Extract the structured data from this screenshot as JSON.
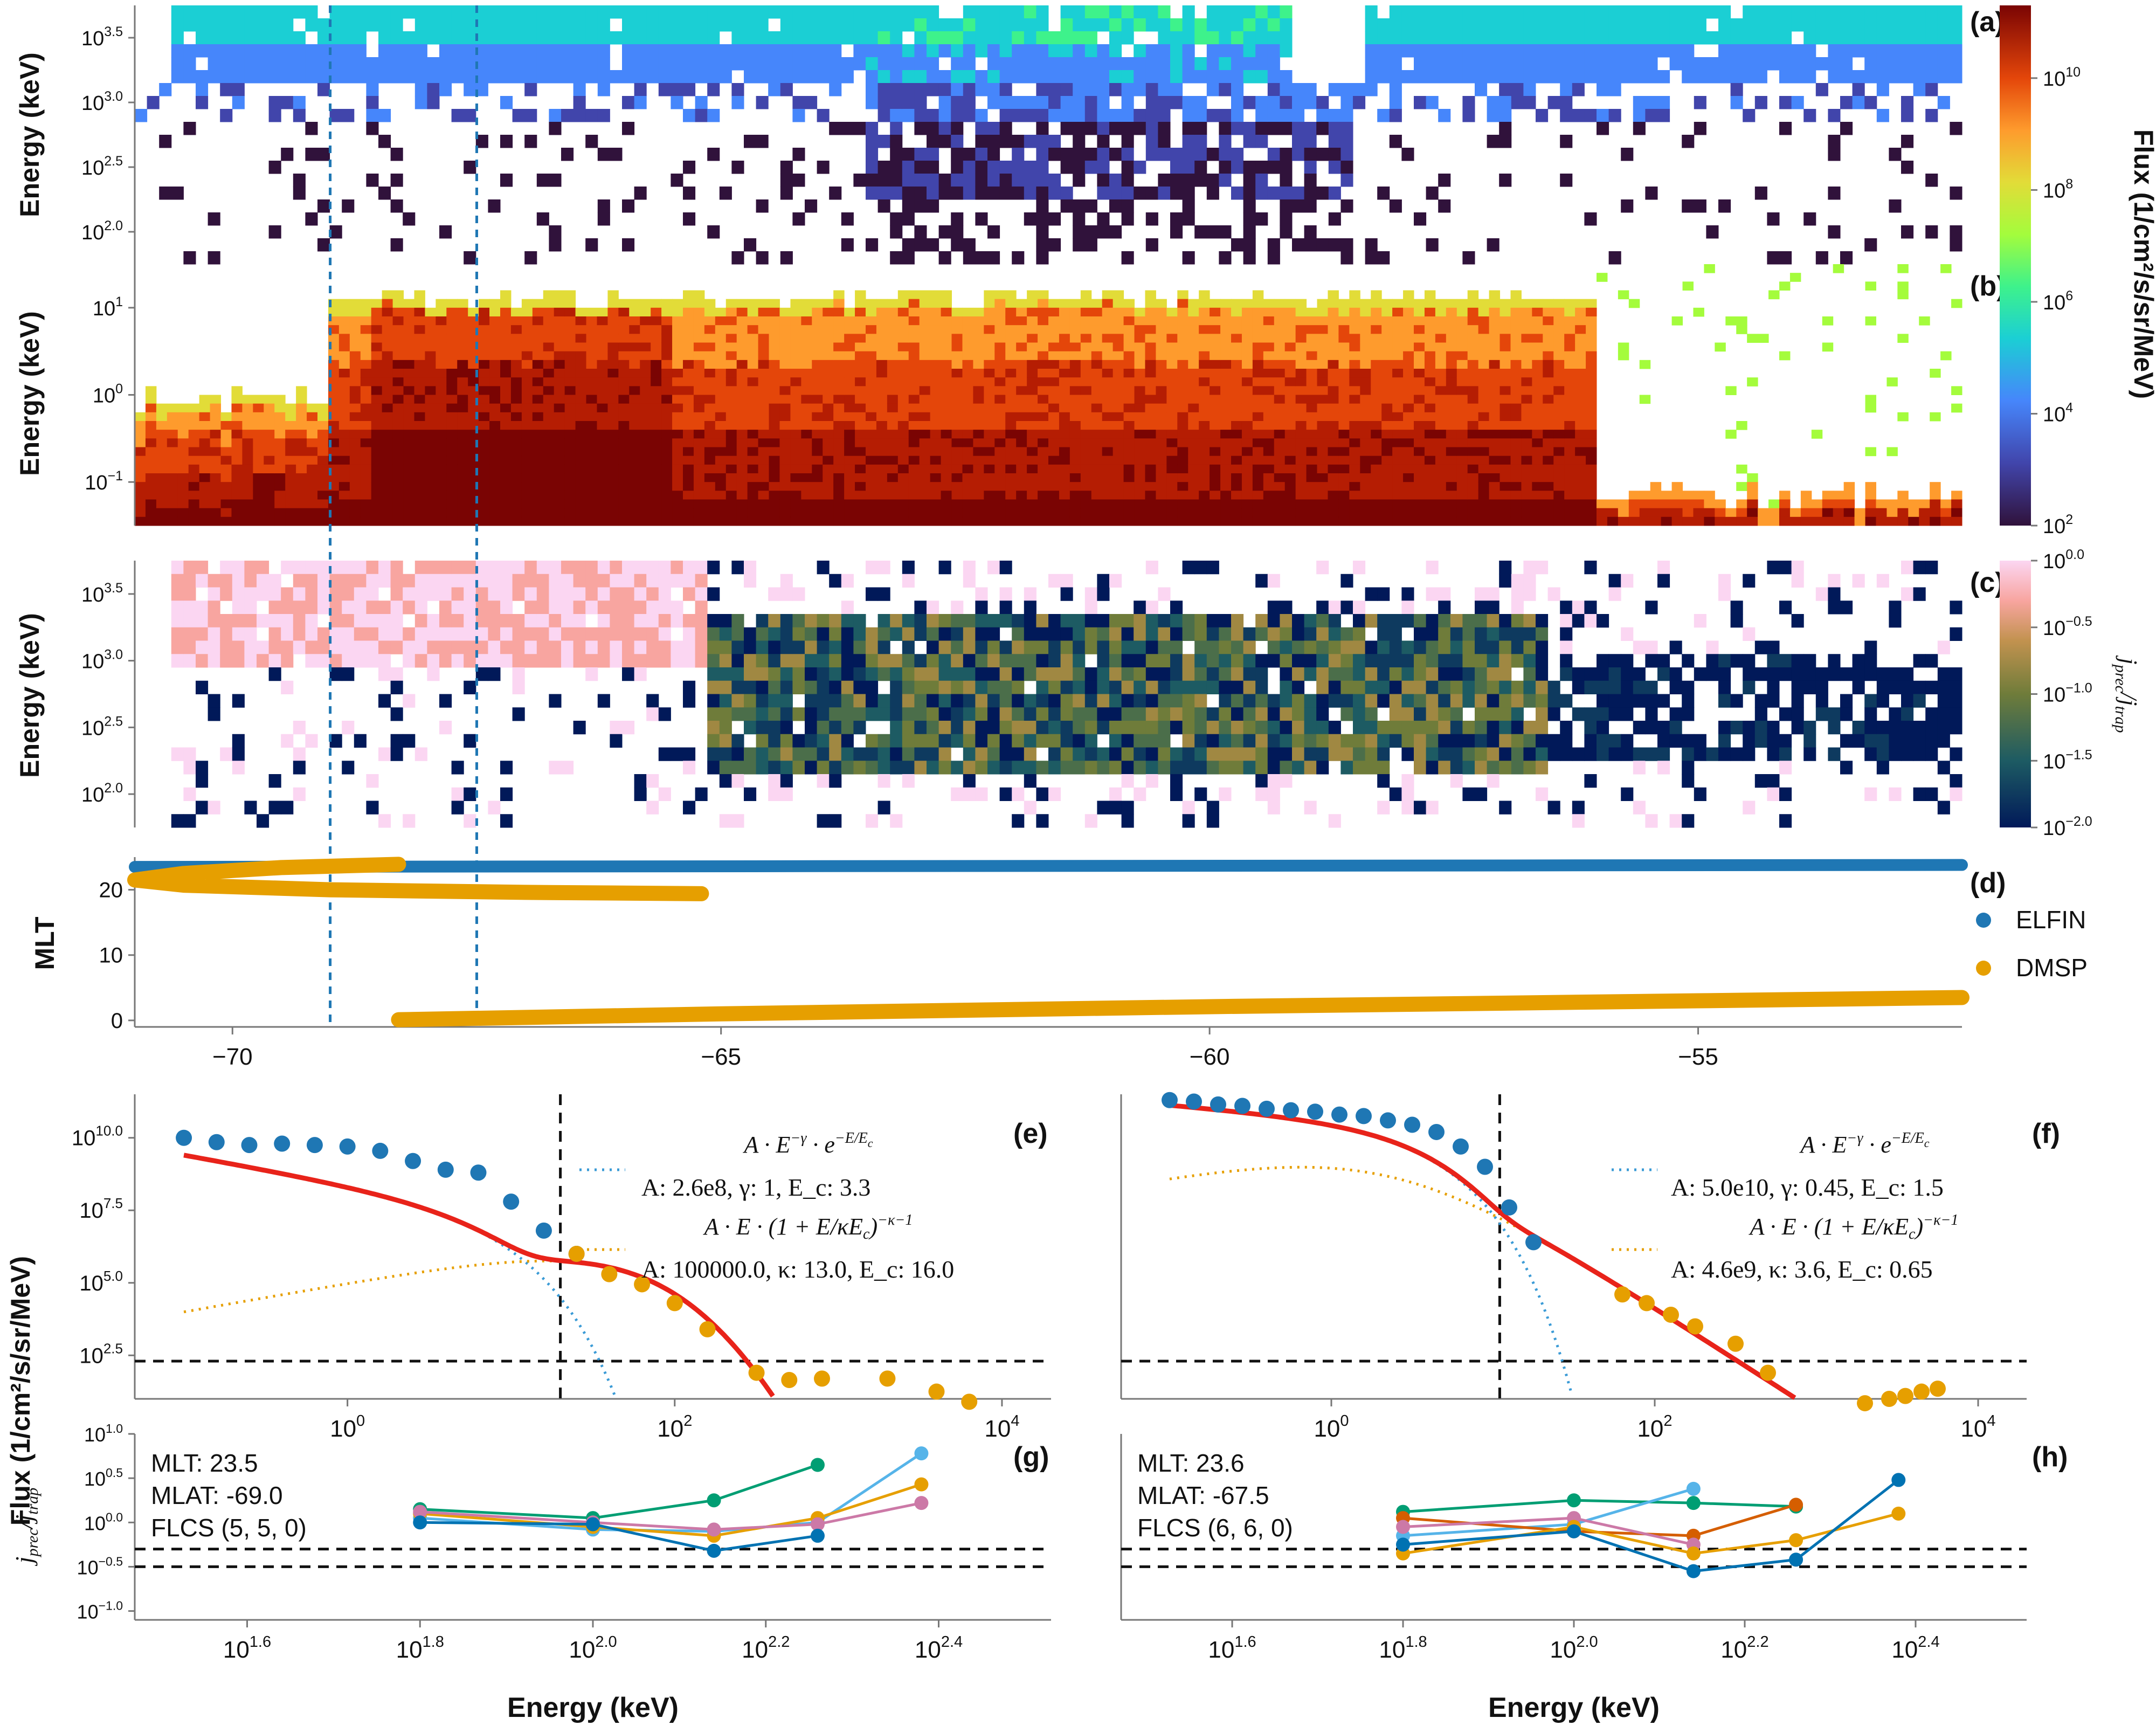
{
  "chart_data": [
    {
      "panel": "(a)",
      "type": "heatmap",
      "ylabel": "Energy (keV)",
      "y_ticks": [
        "10^{2.0}",
        "10^{2.5}",
        "10^{3.0}",
        "10^{3.5}"
      ],
      "y_range_log": [
        1.75,
        3.85
      ],
      "x_range": [
        -71,
        -52.3
      ],
      "colorbar": {
        "label": "Flux (1/cm²/s/sr/MeV)",
        "ticks": [
          "10^{2}",
          "10^{4}",
          "10^{6}",
          "10^{8}",
          "10^{10}"
        ],
        "scale": "log",
        "range_log": [
          2,
          11.3
        ]
      }
    },
    {
      "panel": "(b)",
      "type": "heatmap",
      "ylabel": "Energy (keV)",
      "y_ticks": [
        "10^{-1}",
        "10^{0}",
        "10^{1}"
      ],
      "y_range_log": [
        -1.75,
        1.5
      ],
      "x_range": [
        -71,
        -52.3
      ]
    },
    {
      "panel": "(c)",
      "type": "heatmap",
      "ylabel": "Energy (keV)",
      "y_ticks": [
        "10^{2.0}",
        "10^{2.5}",
        "10^{3.0}",
        "10^{3.5}"
      ],
      "x_range": [
        -71,
        -52.3
      ],
      "colorbar": {
        "label": "j_prec / j_trap",
        "ticks": [
          "10^{-2.0}",
          "10^{-1.5}",
          "10^{-1.0}",
          "10^{-0.5}",
          "10^{0.0}"
        ],
        "scale": "log",
        "range_log": [
          -2,
          0
        ]
      }
    },
    {
      "panel": "(d)",
      "type": "scatter",
      "ylabel": "MLT",
      "y_ticks": [
        "0",
        "10",
        "20"
      ],
      "ylim": [
        -1,
        25
      ],
      "x_ticks": [
        "−70",
        "−65",
        "−60",
        "−55"
      ],
      "xlim": [
        -71,
        -52.3
      ],
      "vlines_x": [
        -69.0,
        -67.5
      ],
      "legend": {
        "placement": "right",
        "entries": [
          {
            "name": "ELFIN",
            "color": "#1f77b4"
          },
          {
            "name": "DMSP",
            "color": "#e69f00"
          }
        ]
      },
      "series": [
        {
          "name": "ELFIN",
          "points": [
            [
              -71,
              23.5
            ],
            [
              -52.3,
              23.8
            ]
          ]
        },
        {
          "name": "DMSP",
          "points": [
            [
              -68.3,
              23.9
            ],
            [
              -69.5,
              23.4
            ],
            [
              -70.5,
              22.5
            ],
            [
              -71,
              21.5
            ],
            [
              -70.5,
              20.7
            ],
            [
              -69,
              20.0
            ],
            [
              -67,
              19.6
            ],
            [
              -65.2,
              19.4
            ]
          ]
        },
        {
          "name": "DMSP",
          "points": [
            [
              -68.3,
              0.1
            ],
            [
              -65,
              1.0
            ],
            [
              -60,
              2.1
            ],
            [
              -55,
              3.0
            ],
            [
              -52.3,
              3.5
            ]
          ]
        }
      ]
    },
    {
      "panel": "(e)",
      "type": "line",
      "ylabel": "Flux (1/cm²/s/sr/MeV)",
      "x_scale": "log",
      "xlim_log": [
        -1.3,
        4.3
      ],
      "x_ticks": [
        "10^{0}",
        "10^{2}",
        "10^{4}"
      ],
      "ylim_log": [
        1.0,
        11.5
      ],
      "y_ticks": [
        "10^{2.5}",
        "10^{5.0}",
        "10^{7.5}",
        "10^{10.0}"
      ],
      "vline_x": 20,
      "hline_y_log": 2.3,
      "fits": [
        {
          "formula": "A·E^{−γ}·e^{−E/E_c}",
          "params": "A: 2.6e8, γ: 1, E_c: 3.3",
          "A": 260000000.0,
          "gamma": 1,
          "Ec": 3.3
        },
        {
          "formula": "A·E·(1+E/κE_c)^{−κ−1}",
          "params": "A: 100000.0, κ: 13.0, E_c: 16.0",
          "A": 100000.0,
          "kappa": 13.0,
          "Ec": 16.0
        }
      ],
      "series": [
        {
          "name": "ELFIN",
          "x_log": [
            -1.0,
            -0.8,
            -0.6,
            -0.4,
            -0.2,
            0.0,
            0.2,
            0.4,
            0.6,
            0.8,
            1.0,
            1.2,
            1.4
          ],
          "y_log": [
            10.0,
            9.85,
            9.75,
            9.8,
            9.75,
            9.7,
            9.55,
            9.2,
            8.9,
            8.8,
            7.8,
            6.8,
            6.0
          ]
        },
        {
          "name": "DMSP",
          "x_log": [
            1.4,
            1.6,
            1.8,
            2.0,
            2.2,
            2.5,
            2.7,
            2.9,
            3.3,
            3.6,
            3.8
          ],
          "y_log": [
            6.0,
            5.3,
            4.95,
            4.3,
            3.4,
            1.9,
            1.65,
            1.7,
            1.7,
            1.25,
            0.9
          ]
        }
      ]
    },
    {
      "panel": "(f)",
      "type": "line",
      "x_scale": "log",
      "xlim_log": [
        -1.3,
        4.3
      ],
      "x_ticks": [
        "10^{0}",
        "10^{2}",
        "10^{4}"
      ],
      "ylim_log": [
        1.0,
        11.5
      ],
      "vline_x": 11,
      "hline_y_log": 2.3,
      "fits": [
        {
          "formula": "A·E^{−γ}·e^{−E/E_c}",
          "params": "A: 5.0e10, γ: 0.45, E_c: 1.5",
          "A": 50000000000.0,
          "gamma": 0.45,
          "Ec": 1.5
        },
        {
          "formula": "A·E·(1+E/κE_c)^{−κ−1}",
          "params": "A: 4.6e9, κ: 3.6, E_c: 0.65",
          "A": 4600000000.0,
          "kappa": 3.6,
          "Ec": 0.65
        }
      ],
      "series": [
        {
          "name": "ELFIN",
          "x_log": [
            -1.0,
            -0.85,
            -0.7,
            -0.55,
            -0.4,
            -0.25,
            -0.1,
            0.05,
            0.2,
            0.35,
            0.5,
            0.65,
            0.8,
            0.95,
            1.1,
            1.25
          ],
          "y_log": [
            11.3,
            11.25,
            11.15,
            11.1,
            11.0,
            10.95,
            10.9,
            10.8,
            10.75,
            10.6,
            10.45,
            10.2,
            9.7,
            9.0,
            7.6,
            6.4
          ]
        },
        {
          "name": "DMSP",
          "x_log": [
            1.8,
            1.95,
            2.1,
            2.25,
            2.5,
            2.7,
            3.3,
            3.45,
            3.55,
            3.65,
            3.75
          ],
          "y_log": [
            4.6,
            4.3,
            3.9,
            3.5,
            2.9,
            1.9,
            0.85,
            1.0,
            1.1,
            1.25,
            1.35
          ]
        }
      ]
    },
    {
      "panel": "(g)",
      "type": "line",
      "ylabel": "j_prec / j_trap",
      "xlabel": "Energy (keV)",
      "x_scale": "log",
      "xlim_log": [
        1.47,
        2.53
      ],
      "x_ticks": [
        "10^{1.6}",
        "10^{1.8}",
        "10^{2.0}",
        "10^{2.2}",
        "10^{2.4}"
      ],
      "ylim_log": [
        -1.1,
        1.0
      ],
      "y_ticks": [
        "10^{-1.0}",
        "10^{-0.5}",
        "10^{0.0}",
        "10^{0.5}",
        "10^{1.0}"
      ],
      "hlines_y_log": [
        -0.3,
        -0.5
      ],
      "annotation": {
        "mlt": "MLT: 23.5",
        "mlat": "MLAT: -69.0",
        "flcs": "FLCS (5, 5, 0)"
      },
      "series": [
        {
          "color": "#009e73",
          "x_log": [
            1.8,
            2.0,
            2.14,
            2.26
          ],
          "y_log": [
            0.15,
            0.05,
            0.25,
            0.65
          ]
        },
        {
          "color": "#56b4e9",
          "x_log": [
            1.8,
            2.0,
            2.14,
            2.26,
            2.38
          ],
          "y_log": [
            0.05,
            -0.08,
            -0.1,
            0.0,
            0.78
          ]
        },
        {
          "color": "#e69f00",
          "x_log": [
            1.8,
            2.0,
            2.14,
            2.26,
            2.38
          ],
          "y_log": [
            0.1,
            -0.05,
            -0.15,
            0.05,
            0.43
          ]
        },
        {
          "color": "#cc79a7",
          "x_log": [
            1.8,
            2.0,
            2.14,
            2.26,
            2.38
          ],
          "y_log": [
            0.12,
            0.0,
            -0.08,
            -0.02,
            0.22
          ]
        },
        {
          "color": "#0072b2",
          "x_log": [
            1.8,
            2.0,
            2.14,
            2.26
          ],
          "y_log": [
            0.0,
            -0.02,
            -0.32,
            -0.15
          ]
        }
      ]
    },
    {
      "panel": "(h)",
      "type": "line",
      "xlabel": "Energy (keV)",
      "x_scale": "log",
      "xlim_log": [
        1.47,
        2.53
      ],
      "x_ticks": [
        "10^{1.6}",
        "10^{1.8}",
        "10^{2.0}",
        "10^{2.2}",
        "10^{2.4}"
      ],
      "ylim_log": [
        -1.1,
        1.0
      ],
      "hlines_y_log": [
        -0.3,
        -0.5
      ],
      "annotation": {
        "mlt": "MLT: 23.6",
        "mlat": "MLAT: -67.5",
        "flcs": "FLCS (6, 6, 0)"
      },
      "series": [
        {
          "color": "#009e73",
          "x_log": [
            1.8,
            2.0,
            2.14,
            2.26
          ],
          "y_log": [
            0.12,
            0.25,
            0.22,
            0.18
          ]
        },
        {
          "color": "#56b4e9",
          "x_log": [
            1.8,
            2.0,
            2.14
          ],
          "y_log": [
            -0.15,
            -0.02,
            0.38
          ]
        },
        {
          "color": "#d55e00",
          "x_log": [
            1.8,
            2.0,
            2.14,
            2.26
          ],
          "y_log": [
            0.05,
            -0.1,
            -0.15,
            0.2
          ]
        },
        {
          "color": "#cc79a7",
          "x_log": [
            1.8,
            2.0,
            2.14
          ],
          "y_log": [
            -0.05,
            0.05,
            -0.25
          ]
        },
        {
          "color": "#e69f00",
          "x_log": [
            1.8,
            2.0,
            2.14,
            2.26,
            2.38
          ],
          "y_log": [
            -0.35,
            -0.05,
            -0.35,
            -0.2,
            0.1
          ]
        },
        {
          "color": "#0072b2",
          "x_log": [
            1.8,
            2.0,
            2.14,
            2.26,
            2.38
          ],
          "y_log": [
            -0.25,
            -0.1,
            -0.55,
            -0.42,
            0.48
          ]
        }
      ]
    }
  ]
}
